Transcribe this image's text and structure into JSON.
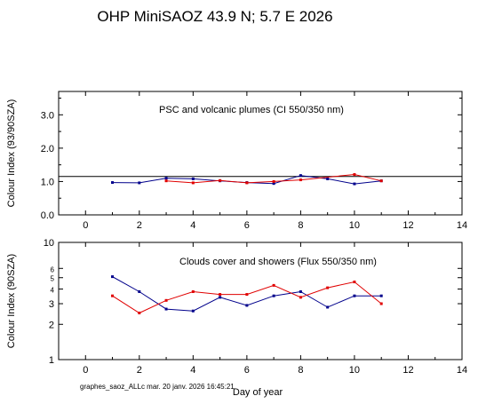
{
  "page": {
    "title": "OHP MiniSAOZ  43.9 N; 5.7 E   2026",
    "footer": "graphes_saoz_ALLc  mar. 20 janv. 2026 16:45:21",
    "xlabel": "Day of year"
  },
  "colors": {
    "series_a": "#00008b",
    "series_b": "#e00000",
    "axis": "#000000"
  },
  "chart_data": [
    {
      "type": "line",
      "title": "PSC and volcanic plumes (CI 550/350 nm)",
      "ylabel": "Colour Index (93/90SZA)",
      "xlabel": "",
      "xlim": [
        -1,
        14
      ],
      "ylim": [
        0,
        3.7
      ],
      "xticks": [
        0,
        2,
        4,
        6,
        8,
        10,
        12,
        14
      ],
      "yticks": [
        0.0,
        1.0,
        2.0,
        3.0
      ],
      "ytick_labels": [
        "0.0",
        "1.0",
        "2.0",
        "3.0"
      ],
      "reference_line": 1.15,
      "series": [
        {
          "color": "#00008b",
          "x": [
            1,
            2,
            3,
            4,
            5,
            6,
            7,
            8,
            9,
            10,
            11
          ],
          "y": [
            0.97,
            0.96,
            1.1,
            1.08,
            1.02,
            0.97,
            0.94,
            1.18,
            1.08,
            0.93,
            1.02
          ]
        },
        {
          "color": "#e00000",
          "x": [
            3,
            4,
            5,
            6,
            7,
            8,
            10,
            11
          ],
          "y": [
            1.02,
            0.96,
            1.03,
            0.96,
            1.0,
            1.05,
            1.21,
            1.02
          ]
        }
      ]
    },
    {
      "type": "line",
      "title": "Clouds cover and showers (Flux 550/350 nm)",
      "ylabel": "Colour Index (90SZA)",
      "xlabel": "Day of year",
      "xlim": [
        -1,
        14
      ],
      "ylim": [
        1,
        10
      ],
      "yscale": "log",
      "xticks": [
        0,
        2,
        4,
        6,
        8,
        10,
        12,
        14
      ],
      "yticks": [
        1,
        2,
        3,
        4,
        5,
        6,
        10
      ],
      "ytick_labels": [
        "1",
        "2",
        "3",
        "4",
        "5",
        "6",
        "10"
      ],
      "series": [
        {
          "color": "#00008b",
          "x": [
            1,
            2,
            3,
            4,
            5,
            6,
            7,
            8,
            9,
            10,
            11
          ],
          "y": [
            5.1,
            3.8,
            2.7,
            2.6,
            3.4,
            2.9,
            3.5,
            3.8,
            2.8,
            3.5,
            3.5
          ]
        },
        {
          "color": "#e00000",
          "x": [
            1,
            2,
            3,
            4,
            5,
            6,
            7,
            8,
            9,
            10,
            11
          ],
          "y": [
            3.5,
            2.5,
            3.2,
            3.8,
            3.6,
            3.6,
            4.3,
            3.4,
            4.1,
            4.6,
            3.0
          ]
        }
      ]
    }
  ]
}
